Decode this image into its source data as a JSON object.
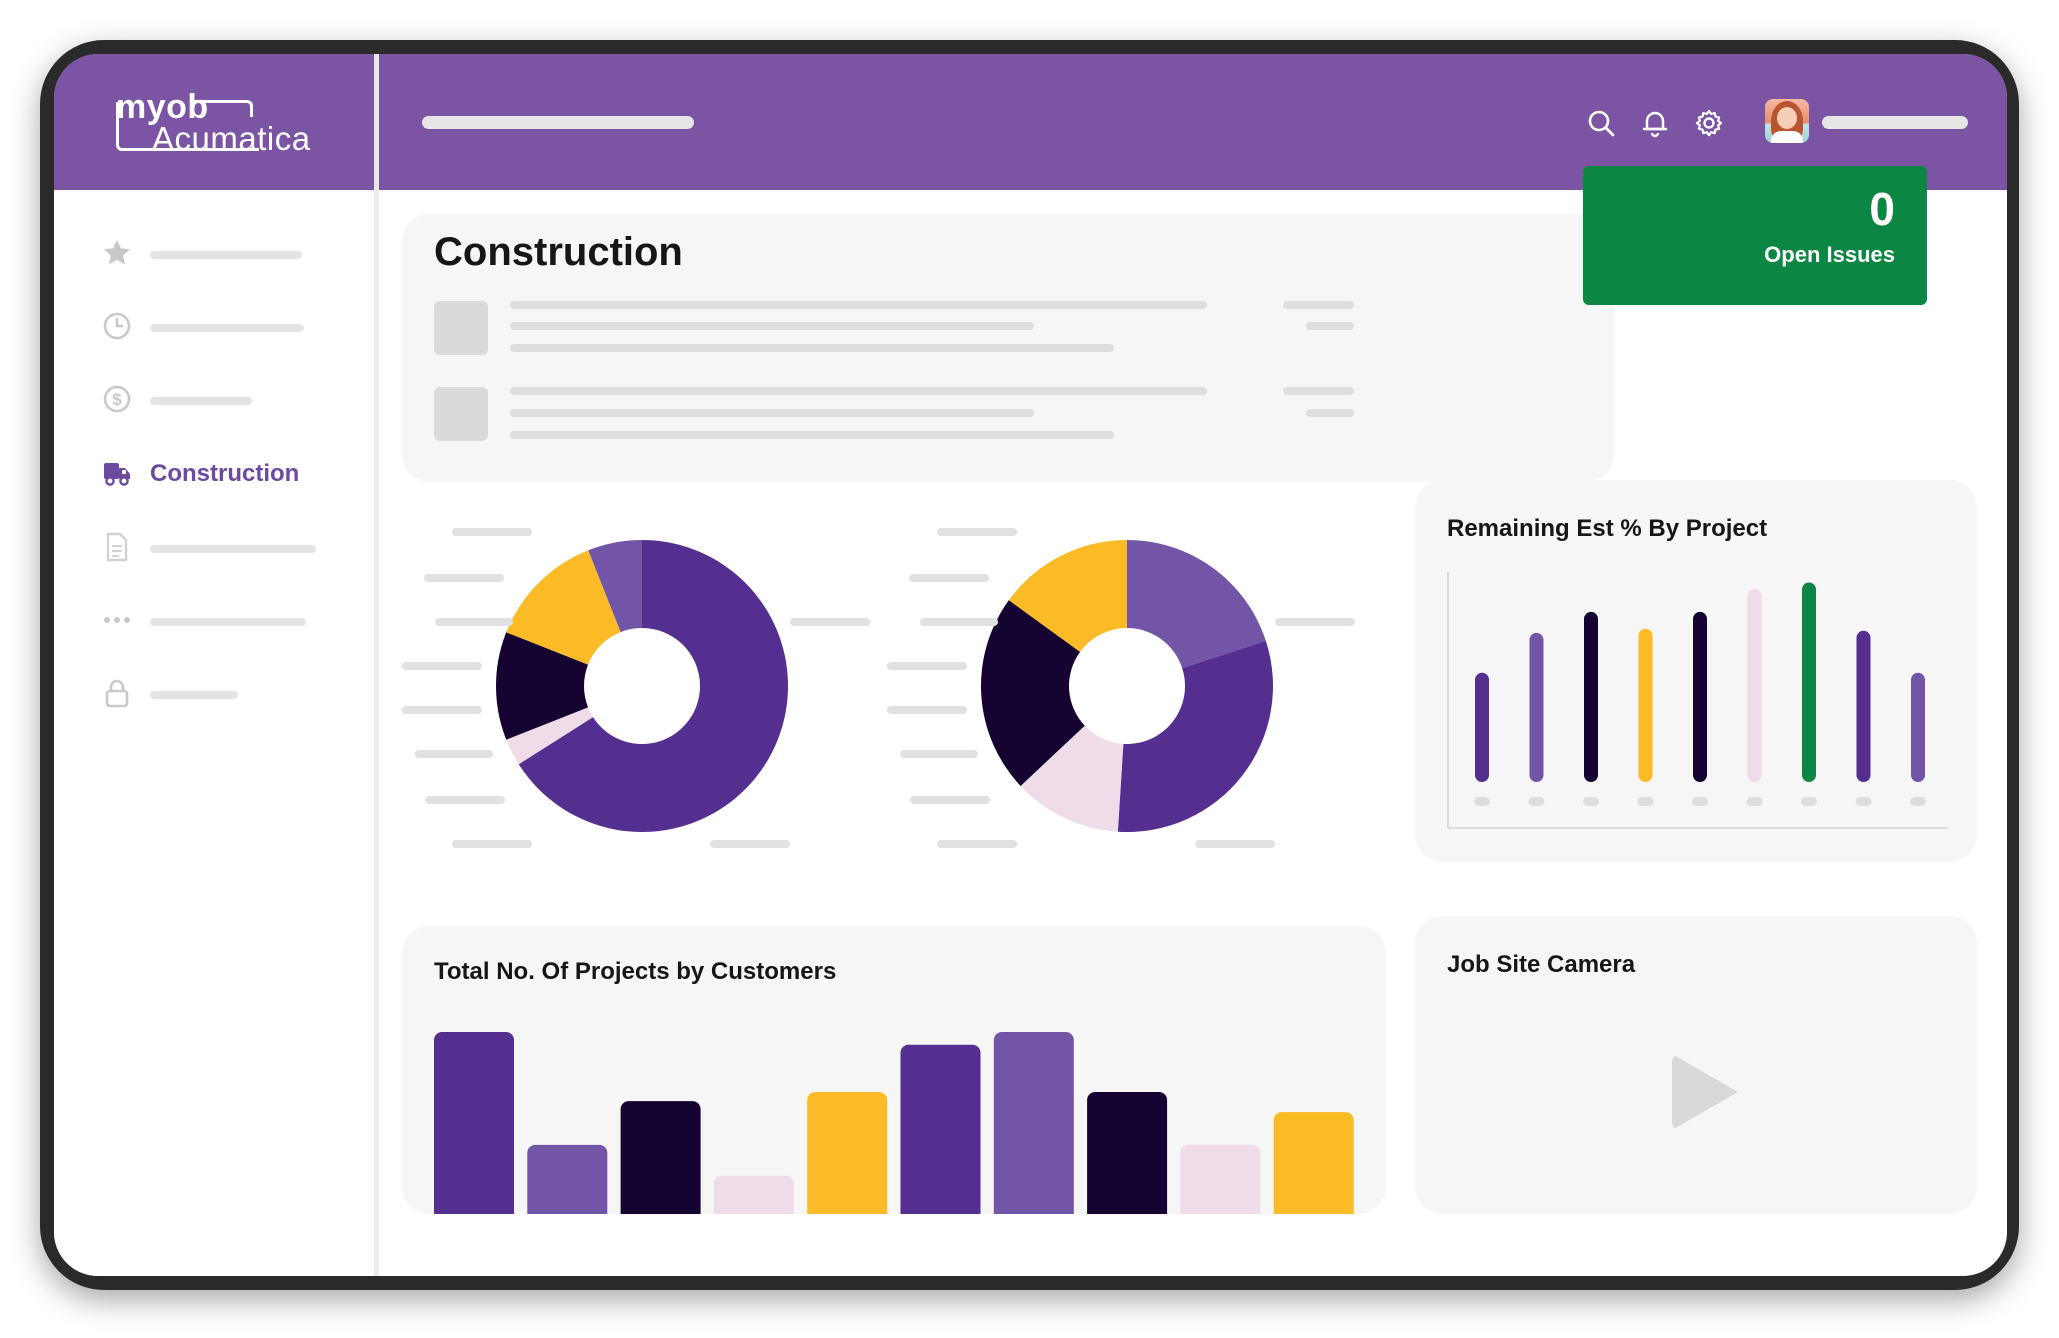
{
  "brand": {
    "logo_line1": "myob",
    "logo_line2": "Acumatica"
  },
  "colors": {
    "purple": "#7b55a4",
    "deep_purple": "#552f8f",
    "mid_purple": "#7255a6",
    "dark": "#150431",
    "yellow": "#fbbb27",
    "pink": "#f0dbe9",
    "green": "#0c8643"
  },
  "header": {
    "icons": [
      "search-icon",
      "bell-icon",
      "gear-icon",
      "avatar"
    ]
  },
  "sidebar": {
    "items": [
      {
        "icon": "star-icon",
        "label": ""
      },
      {
        "icon": "clock-icon",
        "label": ""
      },
      {
        "icon": "dollar-icon",
        "label": ""
      },
      {
        "icon": "truck-icon",
        "label": "Construction",
        "active": true
      },
      {
        "icon": "document-icon",
        "label": ""
      },
      {
        "icon": "more-icon",
        "label": ""
      },
      {
        "icon": "lock-icon",
        "label": ""
      }
    ]
  },
  "main": {
    "title": "Construction"
  },
  "issues": {
    "count": "0",
    "label": "Open Issues"
  },
  "remaining_card": {
    "title": "Remaining Est % By Project"
  },
  "projects_card": {
    "title": "Total No. Of Projects by Customers"
  },
  "camera_card": {
    "title": "Job Site Camera"
  },
  "chart_data": [
    {
      "type": "pie",
      "title": "",
      "slices": [
        {
          "value": 66,
          "color": "#552f8f"
        },
        {
          "value": 3,
          "color": "#f0dbe9"
        },
        {
          "value": 12,
          "color": "#150431"
        },
        {
          "value": 13,
          "color": "#fbbb27"
        },
        {
          "value": 6,
          "color": "#7255a6"
        }
      ]
    },
    {
      "type": "pie",
      "title": "",
      "slices": [
        {
          "value": 20,
          "color": "#7255a6"
        },
        {
          "value": 31,
          "color": "#552f8f"
        },
        {
          "value": 12,
          "color": "#f0dbe9"
        },
        {
          "value": 22,
          "color": "#150431"
        },
        {
          "value": 15,
          "color": "#fbbb27"
        }
      ]
    },
    {
      "type": "bar",
      "title": "Remaining Est % By Project",
      "values": [
        52,
        71,
        81,
        73,
        81,
        92,
        95,
        72,
        52
      ],
      "colors": [
        "#552f8f",
        "#7255a6",
        "#150431",
        "#fbbb27",
        "#150431",
        "#f0dbe9",
        "#0c8643",
        "#552f8f",
        "#7255a6"
      ],
      "ylim": [
        0,
        100
      ]
    },
    {
      "type": "bar",
      "title": "Total No. Of Projects by Customers",
      "values": [
        100,
        38,
        62,
        21,
        67,
        93,
        100,
        67,
        38,
        56
      ],
      "colors": [
        "#552f8f",
        "#7255a6",
        "#150431",
        "#f0dbe9",
        "#fbbb27",
        "#552f8f",
        "#7255a6",
        "#150431",
        "#f0dbe9",
        "#fbbb27"
      ],
      "ylim": [
        0,
        100
      ]
    }
  ]
}
